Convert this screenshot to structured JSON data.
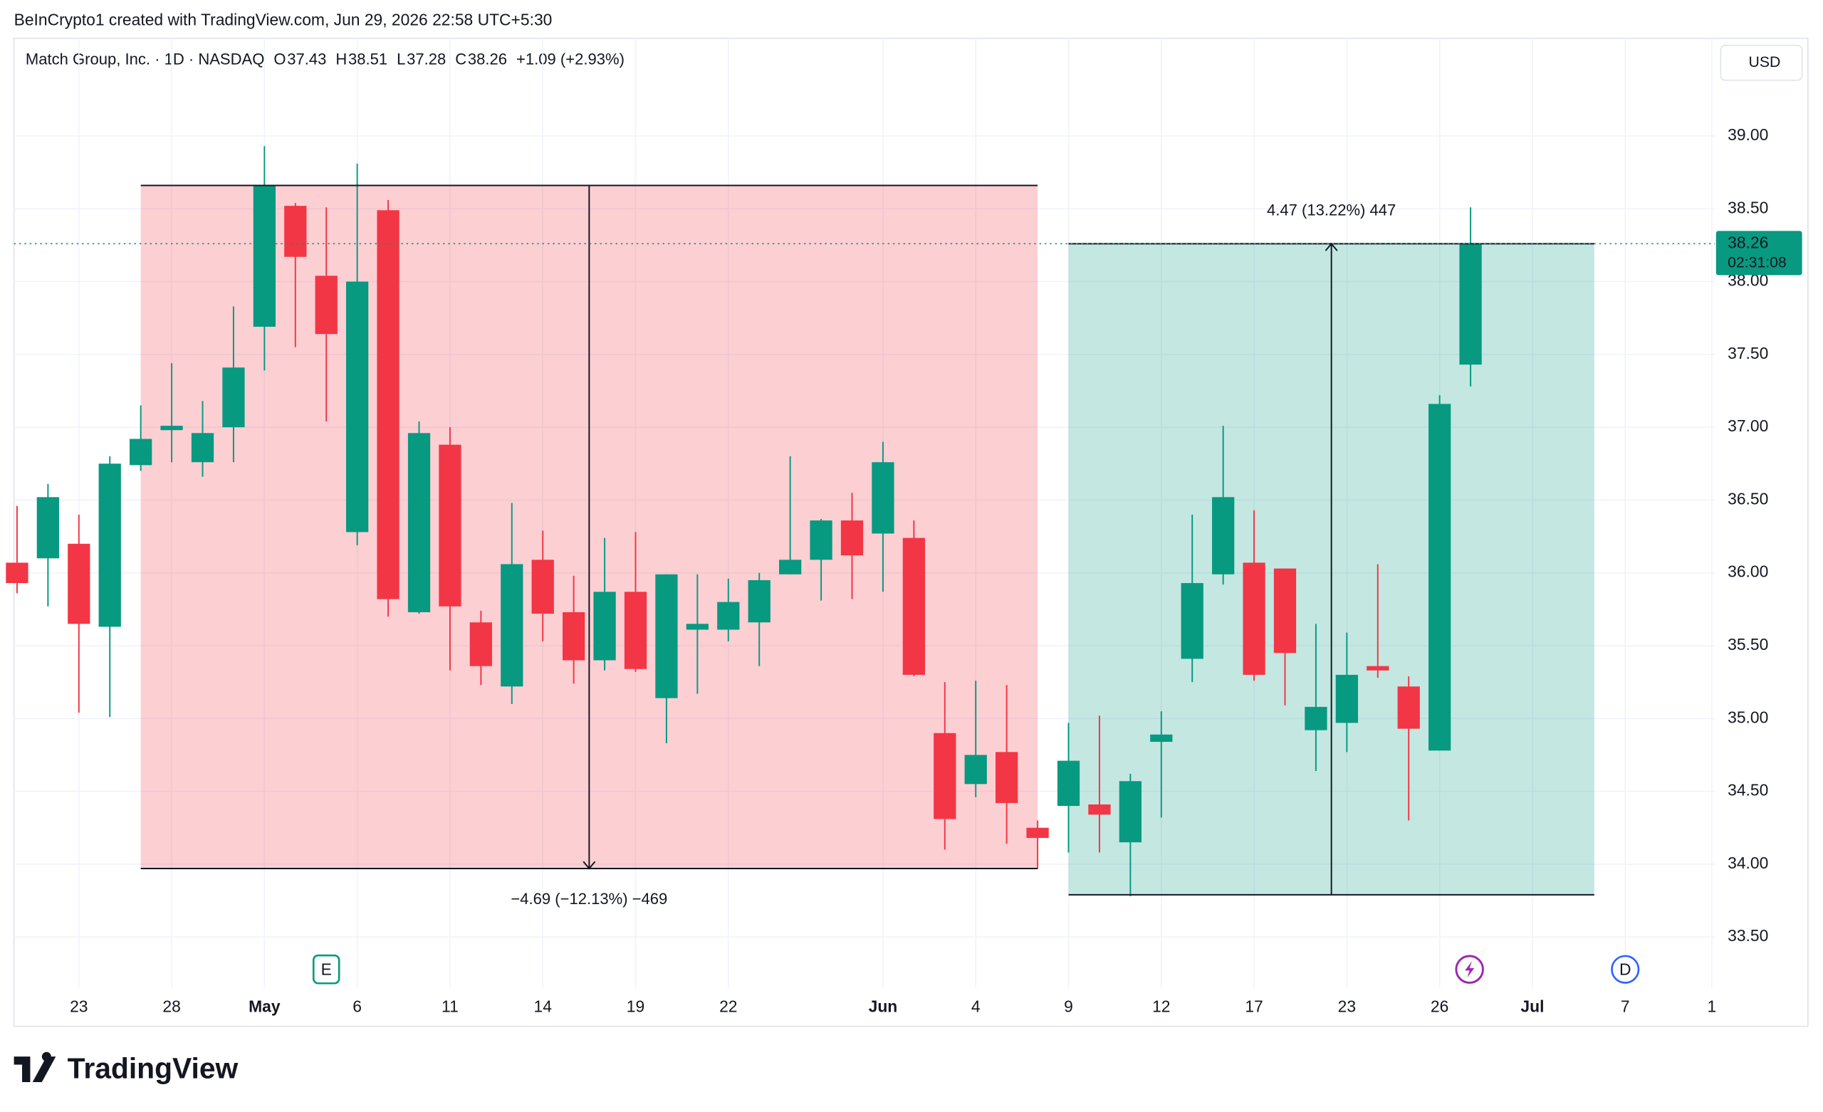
{
  "chart_data": {
    "type": "candlestick",
    "credit": "BeInCrypto1 created with TradingView.com, Jun 29, 2026 22:58 UTC+5:30",
    "symbol": "Match Group, Inc. · 1D · NASDAQ",
    "ohlc_header": {
      "o_label": "O",
      "o": 37.43,
      "h_label": "H",
      "h": 38.51,
      "l_label": "L",
      "l": 37.28,
      "c_label": "C",
      "c": 38.26,
      "change": "+1.09 (+2.93%)"
    },
    "currency": "USD",
    "last_price": 38.26,
    "countdown": "02:31:08",
    "logo": "TradingView",
    "up_color": "#089981",
    "down_color": "#f23645",
    "open": [
      36.07,
      36.1,
      36.2,
      35.63,
      36.74,
      36.98,
      36.76,
      37.0,
      37.69,
      38.52,
      38.04,
      36.28,
      38.49,
      35.73,
      36.88,
      35.66,
      35.22,
      36.09,
      35.73,
      35.4,
      35.87,
      35.14,
      35.61,
      35.61,
      35.66,
      35.99,
      36.09,
      36.36,
      36.27,
      36.24,
      34.9,
      34.55,
      34.77,
      34.25,
      34.4,
      34.41,
      34.15,
      34.84,
      35.41,
      35.99,
      36.07,
      36.03,
      34.92,
      34.97,
      35.36,
      35.22,
      34.78,
      37.43
    ],
    "high": [
      36.46,
      36.61,
      36.4,
      36.8,
      37.15,
      37.44,
      37.18,
      37.83,
      38.93,
      38.54,
      38.51,
      38.81,
      38.56,
      37.04,
      37.0,
      35.74,
      36.48,
      36.29,
      35.98,
      36.24,
      36.28,
      35.99,
      35.99,
      35.96,
      36.0,
      36.8,
      36.37,
      36.55,
      36.9,
      36.36,
      35.25,
      35.26,
      35.23,
      34.3,
      34.97,
      35.02,
      34.62,
      35.05,
      36.4,
      37.01,
      36.43,
      36.03,
      35.65,
      35.59,
      36.06,
      35.29,
      37.22,
      38.51
    ],
    "low": [
      35.86,
      35.77,
      35.04,
      35.01,
      36.7,
      36.76,
      36.66,
      36.76,
      37.39,
      37.55,
      37.04,
      36.19,
      35.7,
      35.72,
      35.33,
      35.23,
      35.1,
      35.53,
      35.24,
      35.33,
      35.32,
      34.83,
      35.17,
      35.53,
      35.36,
      35.99,
      35.81,
      35.82,
      35.87,
      35.29,
      34.1,
      34.46,
      34.14,
      33.97,
      34.08,
      34.08,
      33.78,
      34.32,
      35.25,
      35.92,
      35.26,
      35.09,
      34.64,
      34.77,
      35.28,
      34.3,
      34.78,
      37.28
    ],
    "close": [
      35.93,
      36.52,
      35.65,
      36.75,
      36.92,
      37.01,
      36.96,
      37.41,
      38.66,
      38.17,
      37.64,
      38.0,
      35.82,
      36.96,
      35.77,
      35.36,
      36.06,
      35.72,
      35.4,
      35.87,
      35.34,
      35.99,
      35.65,
      35.8,
      35.95,
      36.09,
      36.36,
      36.12,
      36.76,
      35.3,
      34.31,
      34.75,
      34.42,
      34.18,
      34.71,
      34.34,
      34.57,
      34.89,
      35.93,
      36.52,
      35.3,
      35.45,
      35.08,
      35.3,
      35.33,
      34.93,
      37.16,
      38.26
    ],
    "xlim": [
      -0.1,
      54.9
    ],
    "xticks": [
      {
        "value": 2,
        "label": "23"
      },
      {
        "value": 5,
        "label": "28"
      },
      {
        "value": 8,
        "label": "May"
      },
      {
        "value": 11,
        "label": "6"
      },
      {
        "value": 14,
        "label": "11"
      },
      {
        "value": 17,
        "label": "14"
      },
      {
        "value": 20,
        "label": "19"
      },
      {
        "value": 23,
        "label": "22"
      },
      {
        "value": 28,
        "label": "Jun"
      },
      {
        "value": 31,
        "label": "4"
      },
      {
        "value": 34,
        "label": "9"
      },
      {
        "value": 37,
        "label": "12"
      },
      {
        "value": 40,
        "label": "17"
      },
      {
        "value": 43,
        "label": "23"
      },
      {
        "value": 46,
        "label": "26"
      },
      {
        "value": 49,
        "label": "Jul"
      },
      {
        "value": 52,
        "label": "7"
      },
      {
        "value": 54.8,
        "label": "1"
      }
    ],
    "ylim": [
      33.15,
      39.67
    ],
    "yticks": [
      {
        "value": 33.5,
        "label": "33.50"
      },
      {
        "value": 34,
        "label": "34.00"
      },
      {
        "value": 34.5,
        "label": "34.50"
      },
      {
        "value": 35,
        "label": "35.00"
      },
      {
        "value": 35.5,
        "label": "35.50"
      },
      {
        "value": 36,
        "label": "36.00"
      },
      {
        "value": 36.5,
        "label": "36.50"
      },
      {
        "value": 37,
        "label": "37.00"
      },
      {
        "value": 37.5,
        "label": "37.50"
      },
      {
        "value": 38,
        "label": "38.00"
      },
      {
        "value": 38.5,
        "label": "38.50"
      },
      {
        "value": 39,
        "label": "39.00"
      }
    ],
    "grid": true,
    "measures": [
      {
        "x_start": 4,
        "x_end": 33,
        "from": 38.66,
        "to": 33.97,
        "color": "#f23645",
        "label": "−4.69 (−12.13%) −469"
      },
      {
        "x_start": 34,
        "x_end": 51,
        "from": 33.79,
        "to": 38.26,
        "color": "#089981",
        "label": "4.47 (13.22%) 447"
      }
    ],
    "events": [
      {
        "x": 10,
        "label": "E",
        "color": "#089981"
      },
      {
        "x": 52,
        "label": "D",
        "color": "#2962ff"
      }
    ]
  }
}
